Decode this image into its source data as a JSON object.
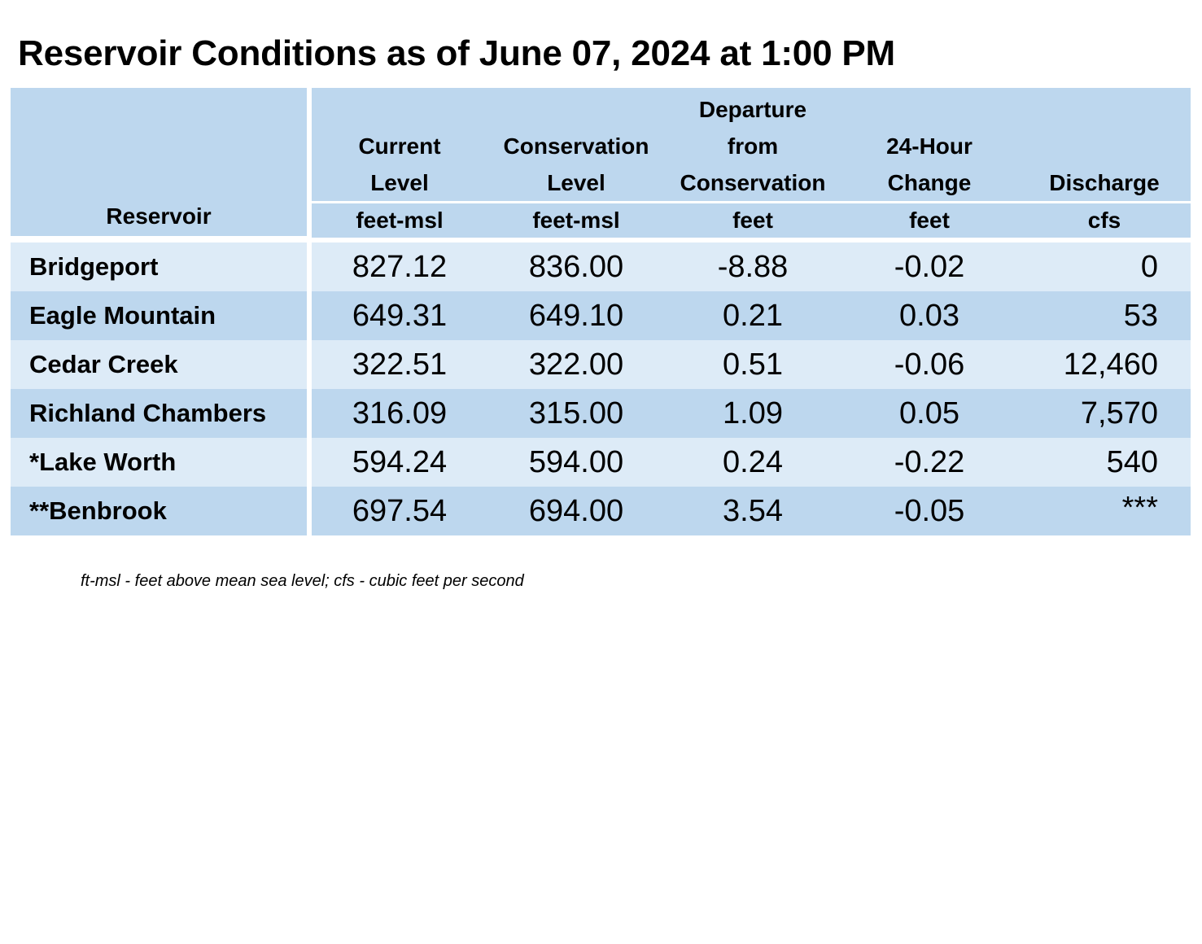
{
  "title": "Reservoir Conditions as of June 07, 2024 at 1:00 PM",
  "table": {
    "headers": {
      "reservoir": "Reservoir",
      "current_level": [
        "Current",
        "Level"
      ],
      "conservation_level": [
        "Conservation",
        "Level"
      ],
      "departure": [
        "Departure",
        "from",
        "Conservation"
      ],
      "change_24h": [
        "24-Hour",
        "Change"
      ],
      "discharge": [
        "Discharge"
      ]
    },
    "units": {
      "current_level": "feet-msl",
      "conservation_level": "feet-msl",
      "departure": "feet",
      "change_24h": "feet",
      "discharge": "cfs"
    },
    "rows": [
      {
        "reservoir": "Bridgeport",
        "current_level": "827.12",
        "conservation_level": "836.00",
        "departure": "-8.88",
        "change_24h": "-0.02",
        "discharge": "0"
      },
      {
        "reservoir": "Eagle Mountain",
        "current_level": "649.31",
        "conservation_level": "649.10",
        "departure": "0.21",
        "change_24h": "0.03",
        "discharge": "53"
      },
      {
        "reservoir": "Cedar Creek",
        "current_level": "322.51",
        "conservation_level": "322.00",
        "departure": "0.51",
        "change_24h": "-0.06",
        "discharge": "12,460"
      },
      {
        "reservoir": "Richland Chambers",
        "current_level": "316.09",
        "conservation_level": "315.00",
        "departure": "1.09",
        "change_24h": "0.05",
        "discharge": "7,570"
      },
      {
        "reservoir": "*Lake Worth",
        "current_level": "594.24",
        "conservation_level": "594.00",
        "departure": "0.24",
        "change_24h": "-0.22",
        "discharge": "540"
      },
      {
        "reservoir": "**Benbrook",
        "current_level": "697.54",
        "conservation_level": "694.00",
        "departure": "3.54",
        "change_24h": "-0.05",
        "discharge": "***"
      }
    ]
  },
  "footnote": "ft-msl - feet above mean sea level; cfs - cubic feet per second",
  "colors": {
    "header_bg": "#bdd7ee",
    "row_light": "#ddebf7",
    "row_dark": "#bdd7ee"
  }
}
